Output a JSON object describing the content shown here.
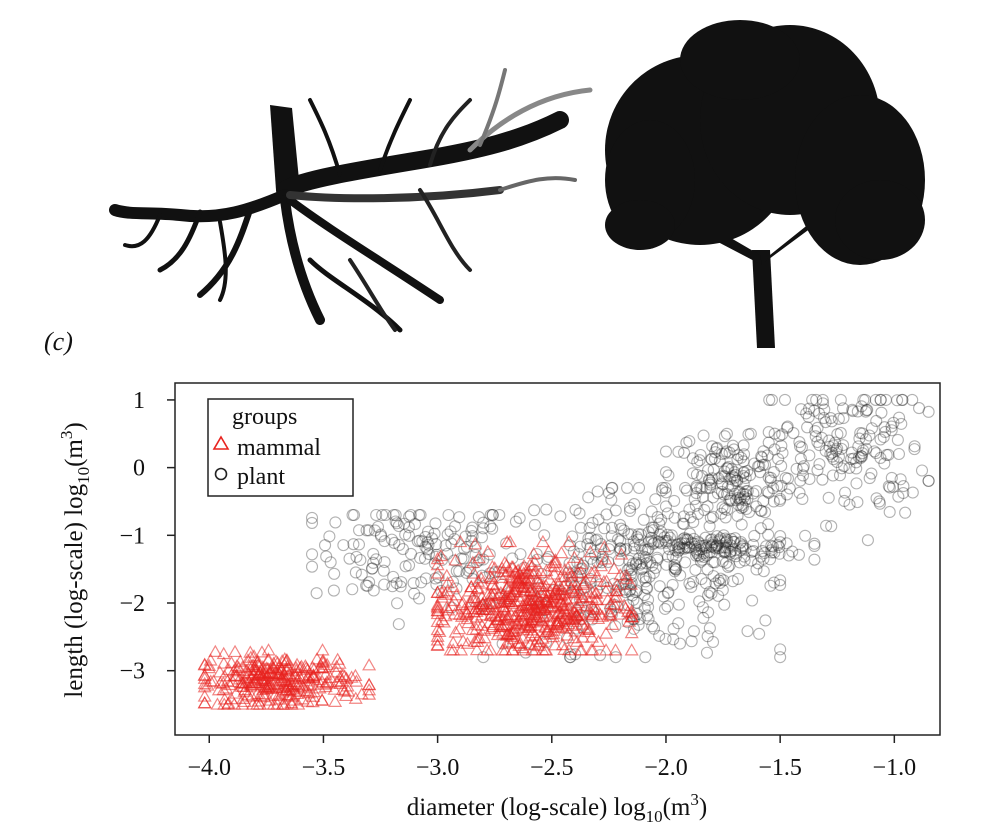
{
  "panel_label": "(c)",
  "colors": {
    "mammal": "#e8231f",
    "plant": "#222222",
    "axis": "#222222",
    "silhouette": "#111111"
  },
  "images": [
    {
      "name": "excised-tree-root-silhouette",
      "description": "black-and-grey silhouette of a branching root system"
    },
    {
      "name": "deciduous-tree-silhouette",
      "description": "black silhouette of a broad leafy tree"
    }
  ],
  "chart_data": {
    "type": "scatter",
    "title": "",
    "xlabel": "diameter (log-scale) log",
    "xlabel_sub": "10",
    "xlabel_unit": "(m",
    "xlabel_sup": "3",
    "xlabel_end": ")",
    "ylabel": "length (log-scale) log",
    "ylabel_sub": "10",
    "ylabel_unit": "(m",
    "ylabel_sup": "3",
    "ylabel_end": ")",
    "xlim": [
      -4.15,
      -0.8
    ],
    "ylim": [
      -3.95,
      1.25
    ],
    "xticks": [
      -4.0,
      -3.5,
      -3.0,
      -2.5,
      -2.0,
      -1.5,
      -1.0
    ],
    "xtick_labels": [
      "−4.0",
      "−3.5",
      "−3.0",
      "−2.5",
      "−2.0",
      "−1.5",
      "−1.0"
    ],
    "yticks": [
      1,
      0,
      -1,
      -2,
      -3
    ],
    "ytick_labels": [
      "1",
      "0",
      "−1",
      "−2",
      "−3"
    ],
    "legend": {
      "title": "groups",
      "position": "top-left",
      "entries": [
        {
          "name": "mammal",
          "marker": "triangle"
        },
        {
          "name": "plant",
          "marker": "circle"
        }
      ]
    },
    "series": [
      {
        "name": "mammal",
        "marker": "triangle",
        "clusters": [
          {
            "x_range": [
              -4.02,
              -3.3
            ],
            "y_range": [
              -3.5,
              -2.7
            ],
            "center": [
              -3.7,
              -3.15
            ],
            "n": 300
          },
          {
            "x_range": [
              -3.0,
              -2.15
            ],
            "y_range": [
              -2.7,
              -1.1
            ],
            "center": [
              -2.6,
              -2.05
            ],
            "n": 550
          }
        ]
      },
      {
        "name": "plant",
        "marker": "circle",
        "clusters": [
          {
            "x_range": [
              -3.55,
              -2.6
            ],
            "y_range": [
              -2.4,
              -0.7
            ],
            "center": [
              -3.1,
              -1.25
            ],
            "n": 150
          },
          {
            "x_range": [
              -2.8,
              -1.5
            ],
            "y_range": [
              -2.8,
              -0.3
            ],
            "center": [
              -2.1,
              -1.5
            ],
            "n": 350
          },
          {
            "x_range": [
              -2.2,
              -1.35
            ],
            "y_range": [
              -1.4,
              -1.0
            ],
            "center": [
              -1.8,
              -1.2
            ],
            "n": 120
          },
          {
            "x_range": [
              -2.0,
              -1.4
            ],
            "y_range": [
              -1.0,
              0.5
            ],
            "center": [
              -1.72,
              -0.15
            ],
            "n": 160
          },
          {
            "x_range": [
              -1.55,
              -0.85
            ],
            "y_range": [
              -1.2,
              1.0
            ],
            "center": [
              -1.2,
              0.3
            ],
            "n": 160
          }
        ]
      }
    ]
  }
}
